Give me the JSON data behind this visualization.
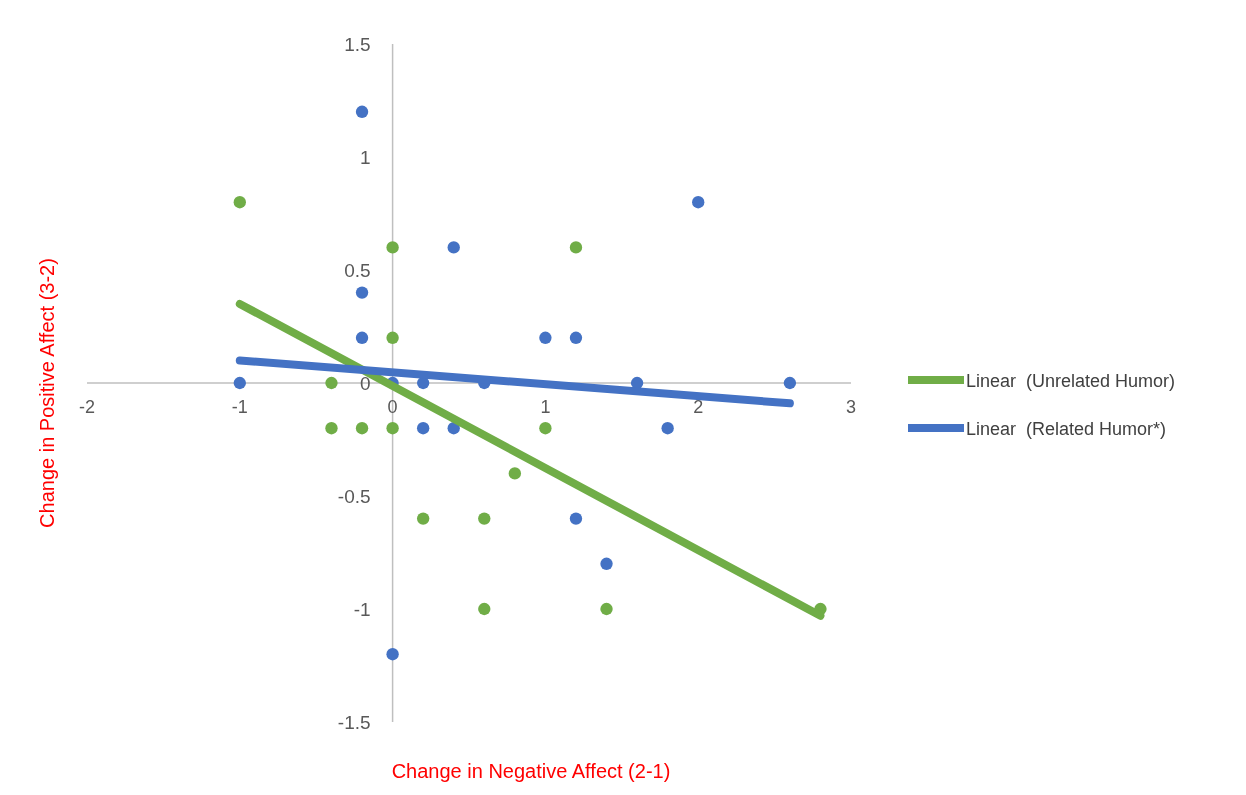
{
  "chart_data": {
    "type": "scatter",
    "xlabel": "Change in Negative Affect (2-1)",
    "ylabel": "Change in Positive Affect (3-2)",
    "xlim": [
      -2,
      3
    ],
    "xticks": [
      -2,
      -1,
      0,
      1,
      2,
      3
    ],
    "ylim": [
      -1.5,
      1.5
    ],
    "yticks": [
      -1.5,
      -1,
      -0.5,
      0,
      0.5,
      1,
      1.5
    ],
    "grid": false,
    "legend": "right",
    "marker": "circle",
    "series": [
      {
        "color": "#70ad47",
        "x": [
          -1,
          0,
          1.2,
          0,
          -0.4,
          -0.4,
          -0.2,
          0,
          1,
          0.8,
          0.2,
          0.6,
          0.6,
          1.4,
          2.8
        ],
        "values": [
          0.8,
          0.6,
          0.6,
          0.2,
          0,
          -0.2,
          -0.2,
          -0.2,
          -0.2,
          -0.4,
          -0.6,
          -0.6,
          -1,
          -1,
          -1
        ]
      },
      {
        "color": "#4472c4",
        "x": [
          -0.2,
          2,
          0.4,
          -0.2,
          -0.2,
          1,
          1.2,
          -1,
          0,
          0.2,
          0.6,
          1.6,
          2.6,
          0.2,
          0.4,
          1.8,
          1.2,
          1.4,
          0
        ],
        "values": [
          1.2,
          0.8,
          0.6,
          0.4,
          0.2,
          0.2,
          0.2,
          0,
          0,
          0,
          0,
          0,
          0,
          -0.2,
          -0.2,
          -0.2,
          -0.6,
          -0.8,
          -1.2
        ]
      },
      {
        "type": "line",
        "marker": "none",
        "name": "Linear  (Unrelated Humor)",
        "color": "#70ad47",
        "x": [
          -1,
          2.8
        ],
        "values": [
          0.35,
          -1.03
        ]
      },
      {
        "type": "line",
        "marker": "none",
        "name": "Linear  (Related Humor*)",
        "color": "#4472c4",
        "x": [
          -1,
          2.6
        ],
        "values": [
          0.1,
          -0.09
        ]
      }
    ]
  }
}
